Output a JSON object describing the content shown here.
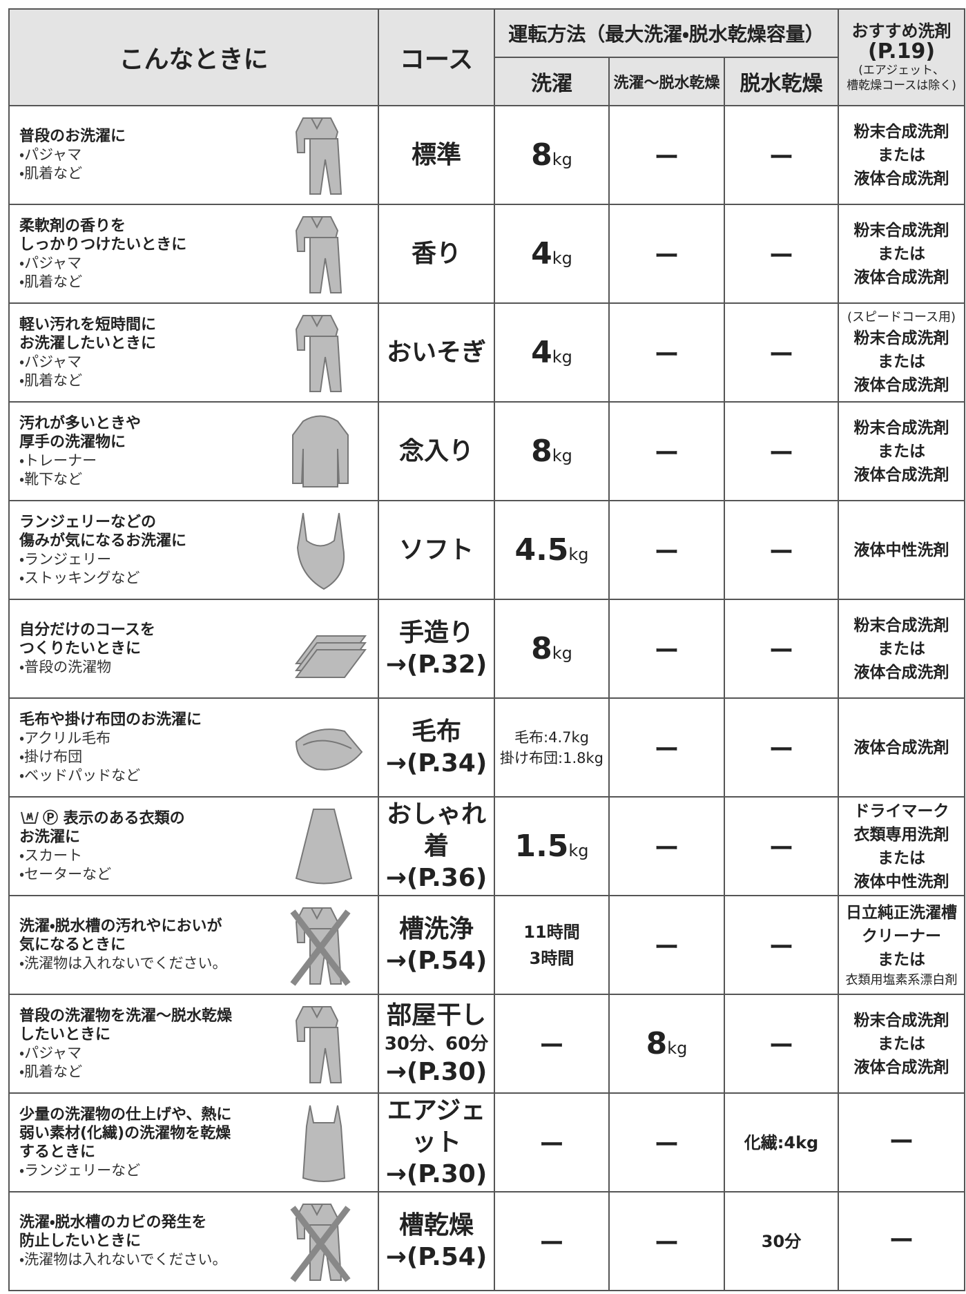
{
  "header": {
    "situation": "こんなときに",
    "course": "コース",
    "method": "運転方法（最大洗濯・脱水乾燥容量）",
    "wash": "洗濯",
    "wash_dry": "洗濯〜脱水乾燥",
    "dry": "脱水乾燥",
    "detergent": [
      "おすすめ洗剤",
      "(P.19)"
    ],
    "detergent_note": [
      "(エアジェット、",
      "槽乾燥コースは除く)"
    ]
  },
  "rows": [
    {
      "title": [
        "普段のお洗濯に"
      ],
      "items": [
        "・パジャマ",
        "・肌着など"
      ],
      "course": [
        "標準"
      ],
      "wash": {
        "num": "8",
        "unit": "kg"
      },
      "wash_dry": "ー",
      "dry": "ー",
      "detergent": [
        "粉末合成洗剤",
        "または",
        "液体合成洗剤"
      ]
    },
    {
      "title": [
        "柔軟剤の香りを",
        "しっかりつけたいときに"
      ],
      "items": [
        "・パジャマ",
        "・肌着など"
      ],
      "course": [
        "香り"
      ],
      "wash": {
        "num": "4",
        "unit": "kg"
      },
      "wash_dry": "ー",
      "dry": "ー",
      "detergent": [
        "粉末合成洗剤",
        "または",
        "液体合成洗剤"
      ]
    },
    {
      "title": [
        "軽い汚れを短時間に",
        "お洗濯したいときに"
      ],
      "items": [
        "・パジャマ",
        "・肌着など"
      ],
      "course": [
        "おいそぎ"
      ],
      "wash": {
        "num": "4",
        "unit": "kg"
      },
      "wash_dry": "ー",
      "dry": "ー",
      "detergent": [
        "(スピードコース用)",
        "粉末合成洗剤",
        "または",
        "液体合成洗剤"
      ]
    },
    {
      "title": [
        "汚れが多いときや",
        "厚手の洗濯物に"
      ],
      "items": [
        "・トレーナー",
        "・靴下など"
      ],
      "course": [
        "念入り"
      ],
      "wash": {
        "num": "8",
        "unit": "kg"
      },
      "wash_dry": "ー",
      "dry": "ー",
      "detergent": [
        "粉末合成洗剤",
        "または",
        "液体合成洗剤"
      ]
    },
    {
      "title": [
        "ランジェリーなどの",
        "傷みが気になるお洗濯に"
      ],
      "items": [
        "・ランジェリー",
        "・ストッキングなど"
      ],
      "course": [
        "ソフト"
      ],
      "wash": {
        "num": "4.5",
        "unit": "kg"
      },
      "wash_dry": "ー",
      "dry": "ー",
      "detergent": [
        "液体中性洗剤"
      ]
    },
    {
      "title": [
        "自分だけのコースを",
        "つくりたいときに"
      ],
      "items": [
        "・普段の洗濯物"
      ],
      "course": [
        "手造り",
        "→(P.32)"
      ],
      "wash": {
        "num": "8",
        "unit": "kg"
      },
      "wash_dry": "ー",
      "dry": "ー",
      "detergent": [
        "粉末合成洗剤",
        "または",
        "液体合成洗剤"
      ]
    },
    {
      "title": [
        "毛布や掛け布団のお洗濯に"
      ],
      "items": [
        "・アクリル毛布",
        "・掛け布団",
        "・ベッドパッドなど"
      ],
      "course": [
        "毛布",
        "→(P.34)"
      ],
      "wash": [
        "毛布:4.7kg",
        "掛け布団:1.8kg"
      ],
      "wash_dry": "ー",
      "dry": "ー",
      "detergent": [
        "液体合成洗剤"
      ]
    },
    {
      "title": [
        "Ⓟ 表示のある衣類の",
        "お洗濯に"
      ],
      "items": [
        "・スカート",
        "・セーターなど"
      ],
      "course": [
        "おしゃれ着",
        "→(P.36)"
      ],
      "wash": {
        "num": "1.5",
        "unit": "kg"
      },
      "wash_dry": "ー",
      "dry": "ー",
      "detergent": [
        "ドライマーク",
        "衣類専用洗剤",
        "または",
        "液体中性洗剤"
      ]
    },
    {
      "title": [
        "洗濯・脱水槽の汚れやにおいが",
        "気になるときに"
      ],
      "items": [
        "・洗濯物は入れないでください。"
      ],
      "course": [
        "槽洗浄",
        "→(P.54)"
      ],
      "wash": [
        "11時間",
        "3時間"
      ],
      "wash_dry": "ー",
      "dry": "ー",
      "detergent": [
        "日立純正洗濯槽",
        "クリーナー",
        "または",
        "衣類用塩素系漂白剤"
      ]
    },
    {
      "title": [
        "普段の洗濯物を洗濯〜脱水乾燥",
        "したいときに"
      ],
      "items": [
        "・パジャマ",
        "・肌着など"
      ],
      "course": [
        "部屋干し",
        "30分、60分",
        "→(P.30)"
      ],
      "wash": "ー",
      "wash_dry": {
        "num": "8",
        "unit": "kg"
      },
      "dry": "ー",
      "detergent": [
        "粉末合成洗剤",
        "または",
        "液体合成洗剤"
      ]
    },
    {
      "title": [
        "少量の洗濯物の仕上げや、熱に",
        "弱い素材(化繊)の洗濯物を乾燥",
        "するときに"
      ],
      "items": [
        "・ランジェリーなど"
      ],
      "course": [
        "エアジェット",
        "→(P.30)"
      ],
      "wash": "ー",
      "wash_dry": "ー",
      "dry": "化繊:4kg",
      "detergent": [
        "ー"
      ]
    },
    {
      "title": [
        "洗濯・脱水槽のカビの発生を",
        "防止したいときに"
      ],
      "items": [
        "・洗濯物は入れないでください。"
      ],
      "course": [
        "槽乾燥",
        "→(P.54)"
      ],
      "wash": "ー",
      "wash_dry": "ー",
      "dry": "30分",
      "detergent": [
        "ー"
      ]
    }
  ]
}
